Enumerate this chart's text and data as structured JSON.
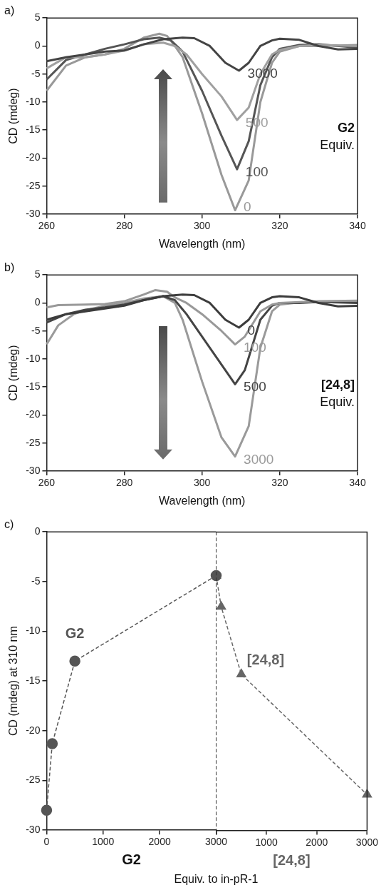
{
  "chart_data": [
    {
      "type": "line",
      "title": "a)",
      "xlabel": "Wavelength (nm)",
      "ylabel": "CD (mdeg)",
      "xlim": [
        260,
        340
      ],
      "xticks": [
        260,
        280,
        300,
        320,
        340
      ],
      "ylim": [
        -30,
        5
      ],
      "yticks": [
        -30,
        -25,
        -20,
        -15,
        -10,
        -5,
        0,
        5
      ],
      "grid": false,
      "legend": false,
      "marker": "none",
      "line_style": "solid",
      "annotations": [
        "G2",
        "Equiv."
      ],
      "series": [
        {
          "name": "3000",
          "color": "#444444",
          "x": [
            260,
            265,
            270,
            275,
            280,
            285,
            290,
            295,
            298,
            302,
            306,
            309.5,
            312,
            315,
            318,
            320,
            325,
            330,
            335,
            340
          ],
          "values": [
            -2.7,
            -2,
            -1.5,
            -1,
            -0.8,
            0.3,
            1.2,
            1.5,
            1.4,
            0,
            -3,
            -4.4,
            -3,
            0,
            1,
            1.3,
            1.1,
            0,
            -0.6,
            -0.5
          ]
        },
        {
          "name": "500",
          "color": "#a0a0a0",
          "x": [
            260,
            265,
            270,
            275,
            280,
            285,
            290,
            293,
            296,
            300,
            305,
            309,
            312,
            315,
            318,
            320,
            325,
            330,
            340
          ],
          "values": [
            -4,
            -2,
            -2,
            -1.5,
            -0.8,
            0.3,
            0.6,
            0,
            -1.5,
            -5,
            -9,
            -13.2,
            -11,
            -5,
            -1.5,
            -0.7,
            0,
            0.2,
            0
          ]
        },
        {
          "name": "100",
          "color": "#555555",
          "x": [
            260,
            265,
            270,
            275,
            280,
            285,
            289,
            292,
            295,
            300,
            305,
            309,
            312,
            315,
            318,
            320,
            325,
            330,
            340
          ],
          "values": [
            -6,
            -2.5,
            -1.5,
            -0.5,
            0.3,
            1.2,
            1.5,
            1,
            -1,
            -8,
            -16,
            -22,
            -17,
            -7,
            -2,
            -0.5,
            0.2,
            0.3,
            -0.3
          ]
        },
        {
          "name": "0",
          "color": "#999999",
          "x": [
            260,
            265,
            270,
            275,
            280,
            285,
            289,
            291,
            293,
            295,
            300,
            305,
            308.5,
            312,
            315,
            318,
            320,
            325,
            330,
            340
          ],
          "values": [
            -8,
            -3.5,
            -2,
            -1.5,
            -0.5,
            1.5,
            2.2,
            1.8,
            0,
            -2,
            -12,
            -23,
            -29.3,
            -24,
            -10,
            -3,
            -1,
            0,
            0,
            0.2
          ]
        }
      ]
    },
    {
      "type": "line",
      "title": "b)",
      "xlabel": "Wavelength (nm)",
      "ylabel": "CD (mdeg)",
      "xlim": [
        260,
        340
      ],
      "xticks": [
        260,
        280,
        300,
        320,
        340
      ],
      "ylim": [
        -30,
        5
      ],
      "yticks": [
        -30,
        -25,
        -20,
        -15,
        -10,
        -5,
        0,
        5
      ],
      "grid": false,
      "legend": false,
      "marker": "none",
      "line_style": "solid",
      "annotations": [
        "[24,8]",
        "Equiv."
      ],
      "series": [
        {
          "name": "0",
          "color": "#3c3c3c",
          "x": [
            260,
            265,
            270,
            275,
            280,
            285,
            290,
            295,
            298,
            302,
            306,
            309.5,
            312,
            315,
            318,
            320,
            325,
            330,
            335,
            340
          ],
          "values": [
            -3,
            -2,
            -1.5,
            -1,
            -0.5,
            0.5,
            1.2,
            1.5,
            1.4,
            0,
            -3,
            -4.4,
            -3,
            0,
            1,
            1.2,
            1,
            0,
            -0.6,
            -0.5
          ]
        },
        {
          "name": "100",
          "color": "#999999",
          "x": [
            260,
            263,
            270,
            275,
            280,
            285,
            288,
            291,
            293,
            296,
            300,
            305,
            308.5,
            311,
            315,
            318,
            320,
            330,
            340
          ],
          "values": [
            -0.8,
            -0.4,
            -0.3,
            -0.2,
            0.3,
            1.5,
            2.3,
            2,
            1,
            0,
            -2,
            -5,
            -7.4,
            -6,
            -1.5,
            -0.3,
            0,
            0.3,
            0.4
          ]
        },
        {
          "name": "500",
          "color": "#444444",
          "x": [
            260,
            265,
            270,
            275,
            280,
            285,
            290,
            293,
            296,
            300,
            305,
            308.5,
            311,
            315,
            318,
            320,
            325,
            330,
            340
          ],
          "values": [
            -3.5,
            -2,
            -1.2,
            -0.8,
            -0.3,
            0.5,
            1.2,
            0.5,
            -2,
            -6,
            -11,
            -14.5,
            -12,
            -3,
            -0.5,
            0,
            0,
            0.2,
            0
          ]
        },
        {
          "name": "3000",
          "color": "#9a9a9a",
          "x": [
            260,
            263,
            267,
            270,
            275,
            280,
            285,
            290,
            293,
            295,
            300,
            305,
            308.5,
            312,
            315,
            318,
            320,
            325,
            330,
            340
          ],
          "values": [
            -7.4,
            -4,
            -2,
            -1.3,
            -0.5,
            0,
            0.8,
            1.2,
            0,
            -3,
            -14,
            -24,
            -27.4,
            -22,
            -8,
            -1.5,
            -0.3,
            0.1,
            0.2,
            0.3
          ]
        }
      ]
    },
    {
      "type": "line",
      "title": "c)",
      "xlabel": "Equiv. to in-pR-1",
      "ylabel": "CD (mdeg) at 310 nm",
      "xlim": [
        0,
        3000
      ],
      "xticks": [
        0,
        1000,
        2000,
        3000
      ],
      "ylim": [
        -30,
        0
      ],
      "yticks": [
        -30,
        -25,
        -20,
        -15,
        -10,
        -5,
        0
      ],
      "grid": false,
      "legend": false,
      "line_style": "dashed",
      "annotations": [
        "G2"
      ],
      "ref_lines": [
        {
          "axis": "x",
          "value": 3000,
          "color": "#333333",
          "line_style": "dashed"
        }
      ],
      "series": [
        {
          "name": "G2",
          "color": "#555555",
          "marker": "circle",
          "x": [
            0,
            100,
            500,
            3000
          ],
          "values": [
            -28,
            -21.3,
            -13,
            -4.4
          ]
        }
      ]
    },
    {
      "type": "line",
      "xlim": [
        0,
        3000
      ],
      "xticks": [
        {
          "value": 0,
          "label": null
        },
        1000,
        2000,
        3000
      ],
      "ylim": [
        -30,
        0
      ],
      "tick_labels": "x",
      "grid": false,
      "legend": false,
      "line_style": "dashed",
      "annotations": [
        "[24,8]"
      ],
      "series": [
        {
          "name": "[24,8]",
          "color": "#666666",
          "marker": "triangle",
          "x": [
            0,
            100,
            500,
            3000
          ],
          "values": [
            -4.4,
            -7.5,
            -14.3,
            -26.4
          ]
        }
      ]
    }
  ]
}
